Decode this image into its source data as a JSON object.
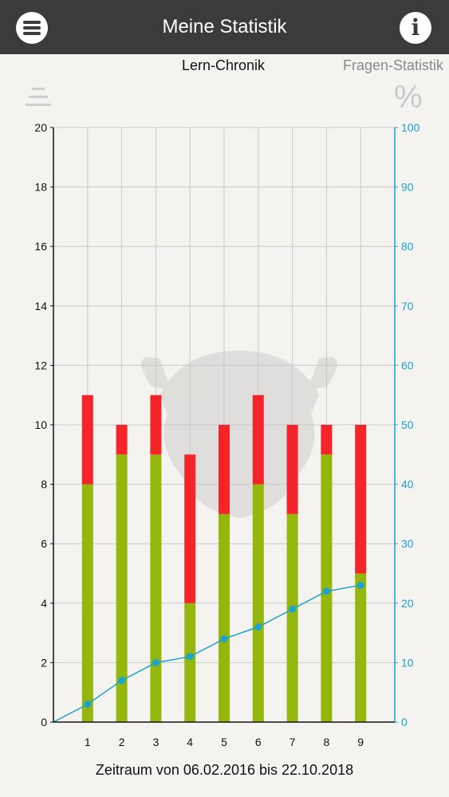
{
  "header": {
    "title": "Meine Statistik",
    "menu_icon": "hamburger-menu-icon",
    "info_icon": "info-icon"
  },
  "tabs": [
    {
      "label": "Lern-Chronik",
      "active": true
    },
    {
      "label": "Fragen-Statistik",
      "active": false
    }
  ],
  "toolbar": {
    "sort_icon": "sort-lines-icon",
    "percent_icon": "percent-icon",
    "percent_glyph": "%"
  },
  "colors": {
    "correct": "#95b60d",
    "wrong": "#f4252a",
    "percent_line": "#1ca3cc",
    "appbar": "#3b3b3b"
  },
  "chart_data": {
    "type": "bar",
    "stacked": true,
    "categories": [
      "1",
      "2",
      "3",
      "4",
      "5",
      "6",
      "7",
      "8",
      "9"
    ],
    "series": [
      {
        "color": "#95b60d",
        "values": [
          8,
          9,
          9,
          4,
          7,
          8,
          7,
          9,
          5
        ]
      },
      {
        "color": "#f4252a",
        "values": [
          3,
          1,
          2,
          5,
          3,
          3,
          3,
          1,
          5
        ]
      }
    ],
    "line_series": {
      "axis": "right",
      "color": "#1ca3cc",
      "values": [
        3,
        7,
        10,
        11,
        14,
        16,
        19,
        22,
        23
      ]
    },
    "y_left": {
      "min": 0,
      "max": 20,
      "ticks": [
        "0",
        "2",
        "4",
        "6",
        "8",
        "10",
        "12",
        "14",
        "16",
        "18",
        "20"
      ]
    },
    "y_right": {
      "min": 0,
      "max": 100,
      "ticks": [
        "0",
        "10",
        "20",
        "30",
        "40",
        "50",
        "60",
        "70",
        "80",
        "90",
        "100"
      ]
    },
    "grid": true
  },
  "footer": {
    "text": "Zeitraum von 06.02.2016 bis 22.10.2018"
  }
}
